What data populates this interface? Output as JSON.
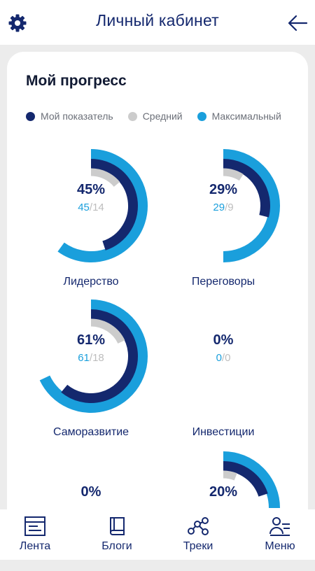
{
  "header": {
    "title": "Личный кабинет"
  },
  "progress": {
    "title": "Мой прогресс",
    "legend": [
      {
        "label": "Мой показатель",
        "color": "#14286e"
      },
      {
        "label": "Средний",
        "color": "#cccccc"
      },
      {
        "label": "Максимальный",
        "color": "#1a9fdc"
      }
    ],
    "gauges": [
      {
        "label": "Лидерство",
        "percent": "45%",
        "mine": "45",
        "sep": "/",
        "avg": "14",
        "mine_frac": 0.45,
        "avg_frac": 0.14,
        "max_frac": 0.6
      },
      {
        "label": "Переговоры",
        "percent": "29%",
        "mine": "29",
        "sep": "/",
        "avg": "9",
        "mine_frac": 0.29,
        "avg_frac": 0.09,
        "max_frac": 0.5
      },
      {
        "label": "Саморазвитие",
        "percent": "61%",
        "mine": "61",
        "sep": "/",
        "avg": "18",
        "mine_frac": 0.61,
        "avg_frac": 0.18,
        "max_frac": 0.68
      },
      {
        "label": "Инвестиции",
        "percent": "0%",
        "mine": "0",
        "sep": "/",
        "avg": "0",
        "mine_frac": 0,
        "avg_frac": 0,
        "max_frac": 0
      },
      {
        "label": "",
        "percent": "0%",
        "mine": "",
        "sep": "",
        "avg": "",
        "mine_frac": 0,
        "avg_frac": 0,
        "max_frac": 0
      },
      {
        "label": "",
        "percent": "20%",
        "mine": "",
        "sep": "",
        "avg": "",
        "mine_frac": 0.2,
        "avg_frac": 0.06,
        "max_frac": 0.25
      }
    ]
  },
  "nav": {
    "items": [
      {
        "label": "Лента",
        "icon": "feed-icon"
      },
      {
        "label": "Блоги",
        "icon": "book-icon"
      },
      {
        "label": "Треки",
        "icon": "tracks-icon"
      },
      {
        "label": "Меню",
        "icon": "menu-person-icon"
      }
    ]
  },
  "colors": {
    "mine": "#14286e",
    "avg": "#cccccc",
    "max": "#1a9fdc"
  }
}
